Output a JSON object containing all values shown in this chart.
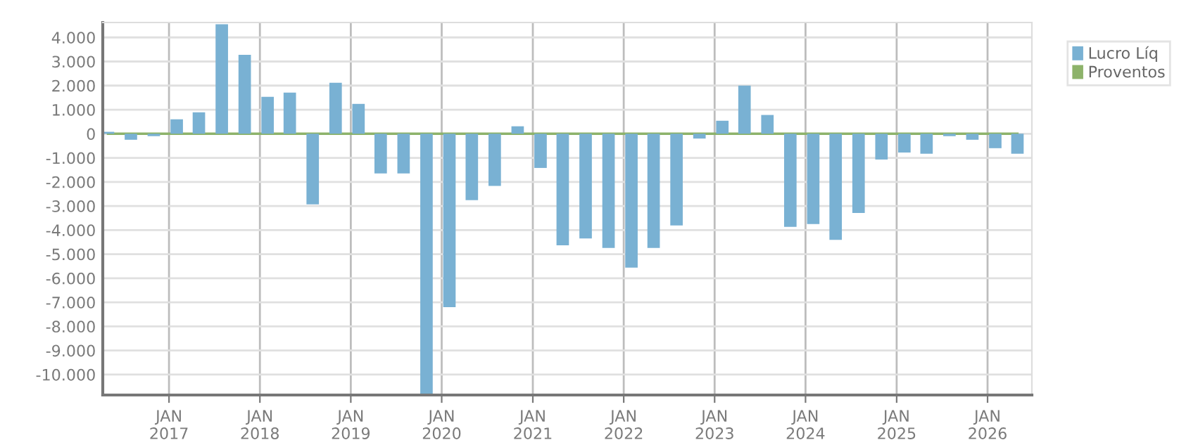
{
  "chart_data": {
    "type": "bar",
    "x": [
      "2016-05",
      "2016-08",
      "2016-11",
      "2017-02",
      "2017-05",
      "2017-08",
      "2017-11",
      "2018-02",
      "2018-05",
      "2018-08",
      "2018-11",
      "2019-02",
      "2019-05",
      "2019-08",
      "2019-11",
      "2020-02",
      "2020-05",
      "2020-08",
      "2020-11",
      "2021-02",
      "2021-05",
      "2021-08",
      "2021-11",
      "2022-02",
      "2022-05",
      "2022-08",
      "2022-11",
      "2023-02",
      "2023-05",
      "2023-08",
      "2023-11",
      "2024-02",
      "2024-05",
      "2024-08",
      "2024-11",
      "2025-02",
      "2025-05",
      "2025-08",
      "2025-11",
      "2026-02",
      "2026-05"
    ],
    "series": [
      {
        "name": "Lucro Líq",
        "color": "#79b1d3",
        "values": [
          80,
          -250,
          -100,
          600,
          890,
          4550,
          3280,
          1530,
          1710,
          -2930,
          2120,
          1240,
          -1650,
          -1650,
          -10800,
          -7200,
          -2760,
          -2170,
          310,
          -1420,
          -4630,
          -4350,
          -4740,
          -5560,
          -4740,
          -3810,
          -200,
          540,
          2000,
          780,
          -3870,
          -3750,
          -4410,
          -3290,
          -1070,
          -780,
          -830,
          -100,
          -250,
          -600,
          -830
        ]
      },
      {
        "name": "Proventos",
        "color": "#8db36a",
        "type": "line",
        "values": [
          0,
          0,
          0,
          0,
          0,
          0,
          0,
          0,
          0,
          0,
          0,
          0,
          0,
          0,
          0,
          0,
          0,
          0,
          0,
          0,
          0,
          0,
          0,
          0,
          0,
          0,
          0,
          0,
          0,
          0,
          0,
          0,
          0,
          0,
          0,
          0,
          0,
          0,
          0,
          0,
          0
        ]
      }
    ],
    "xlim": [
      "2016-04-10",
      "2026-06-28"
    ],
    "xticks": [
      {
        "value": "2017-01",
        "label": "JAN\n2017"
      },
      {
        "value": "2018-01",
        "label": "JAN\n2018"
      },
      {
        "value": "2019-01",
        "label": "JAN\n2019"
      },
      {
        "value": "2020-01",
        "label": "JAN\n2020"
      },
      {
        "value": "2021-01",
        "label": "JAN\n2021"
      },
      {
        "value": "2022-01",
        "label": "JAN\n2022"
      },
      {
        "value": "2023-01",
        "label": "JAN\n2023"
      },
      {
        "value": "2024-01",
        "label": "JAN\n2024"
      },
      {
        "value": "2025-01",
        "label": "JAN\n2025"
      },
      {
        "value": "2026-01",
        "label": "JAN\n2026"
      }
    ],
    "ylim": [
      -10850,
      4620
    ],
    "yticks": [
      {
        "value": 4000,
        "label": "4.000"
      },
      {
        "value": 3000,
        "label": "3.000"
      },
      {
        "value": 2000,
        "label": "2.000"
      },
      {
        "value": 1000,
        "label": "1.000"
      },
      0,
      {
        "value": -1000,
        "label": "-1.000"
      },
      {
        "value": -2000,
        "label": "-2.000"
      },
      {
        "value": -3000,
        "label": "-3.000"
      },
      {
        "value": -4000,
        "label": "-4.000"
      },
      {
        "value": -5000,
        "label": "-5.000"
      },
      {
        "value": -6000,
        "label": "-6.000"
      },
      {
        "value": -7000,
        "label": "-7.000"
      },
      {
        "value": -8000,
        "label": "-8.000"
      },
      {
        "value": -9000,
        "label": "-9.000"
      },
      {
        "value": -10000,
        "label": "-10.000"
      }
    ],
    "grid": true,
    "legend": "top right"
  }
}
